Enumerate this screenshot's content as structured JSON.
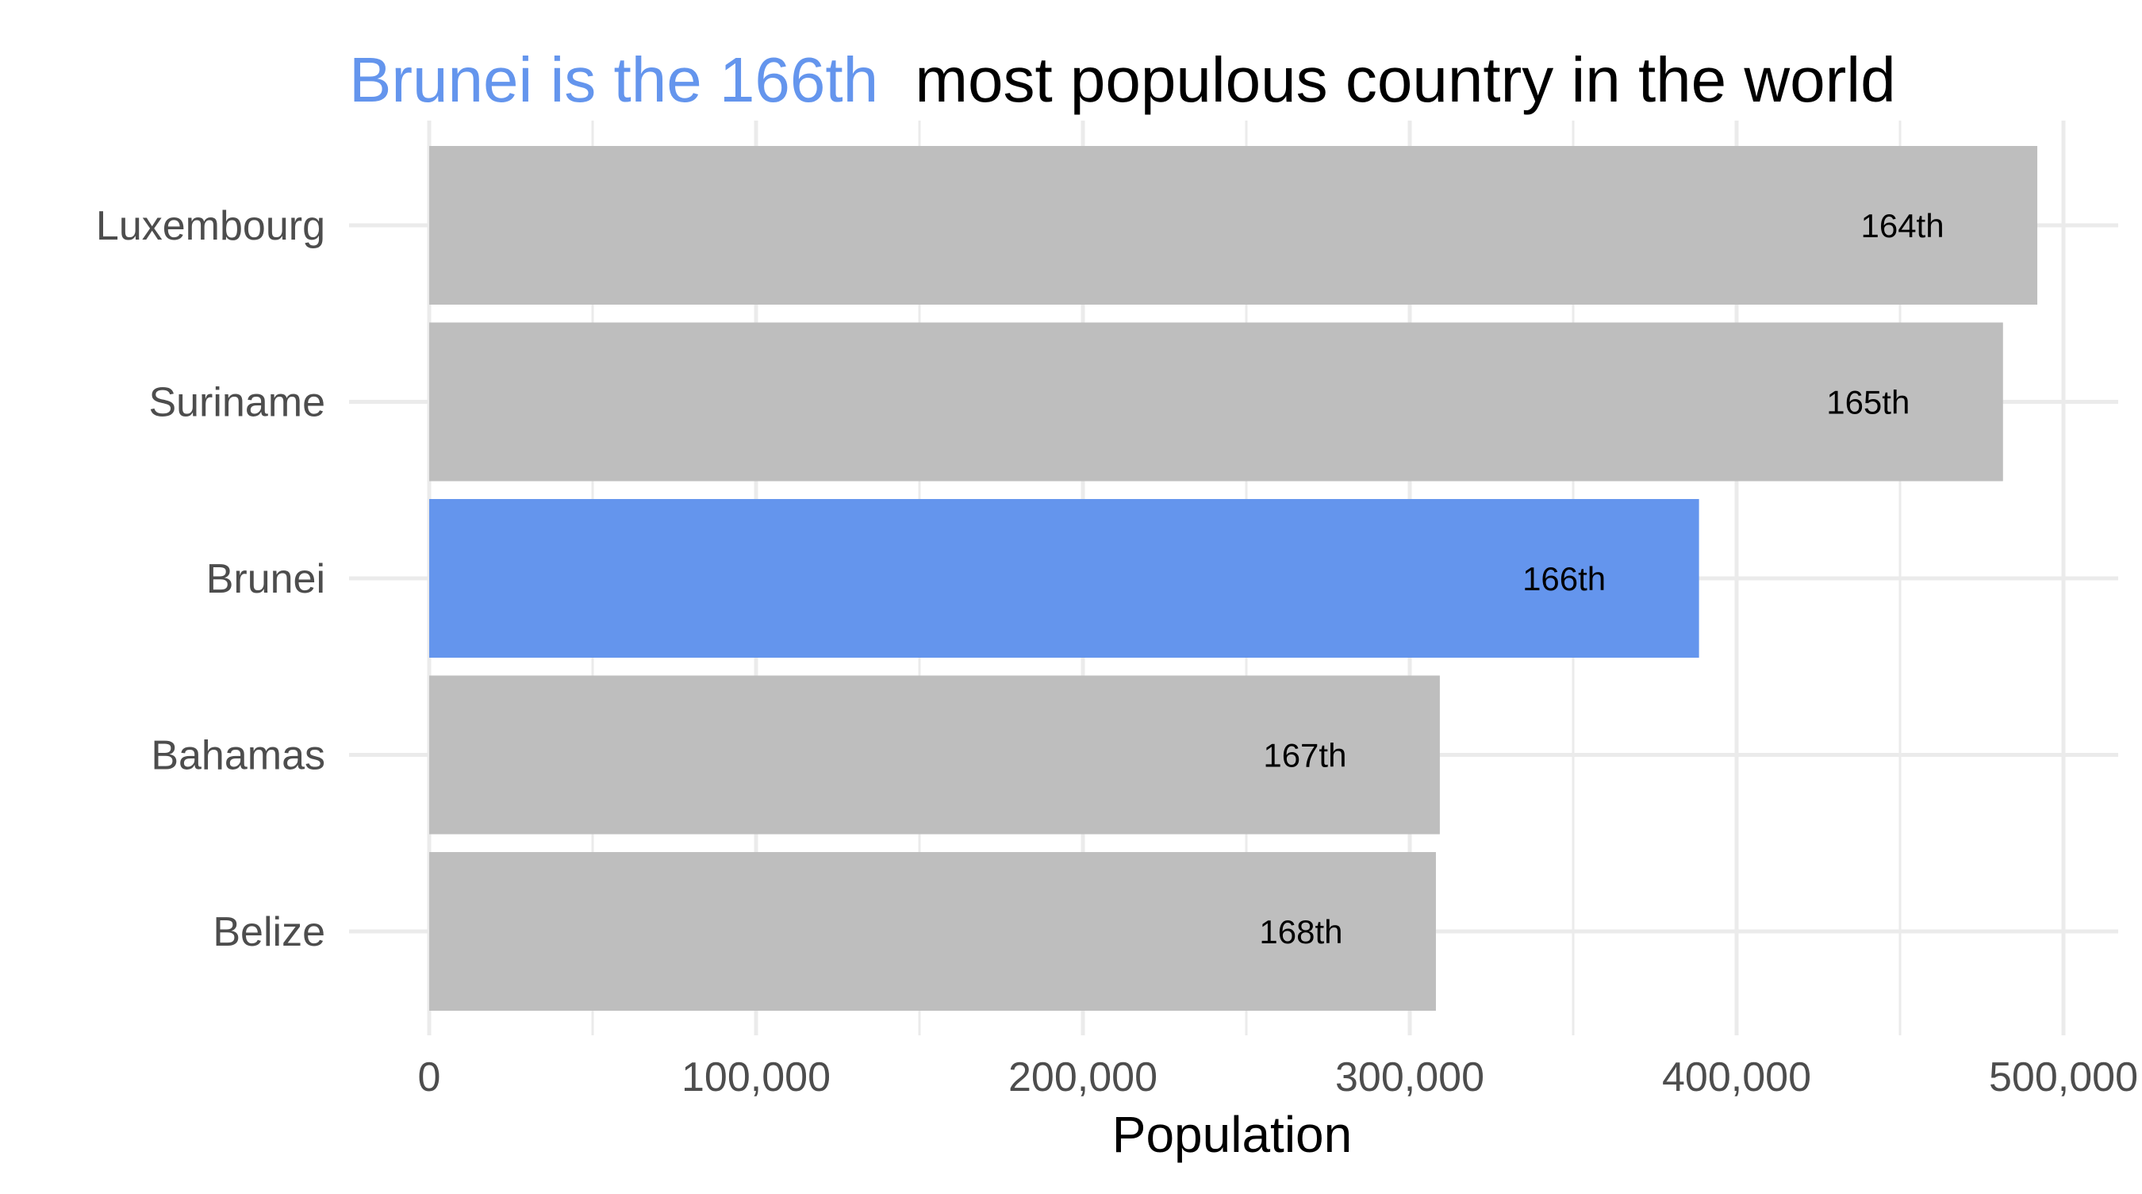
{
  "title": {
    "highlight": "Brunei is the 166th",
    "rest": "most populous country in the world"
  },
  "chart_data": {
    "type": "bar",
    "orientation": "horizontal",
    "categories": [
      "Luxembourg",
      "Suriname",
      "Brunei",
      "Bahamas",
      "Belize"
    ],
    "values": [
      492000,
      481500,
      388500,
      309200,
      308000
    ],
    "labels": [
      "164th",
      "165th",
      "166th",
      "167th",
      "168th"
    ],
    "highlight": "Brunei",
    "xlabel": "Population",
    "ylabel": "",
    "xlim": [
      0,
      510000
    ],
    "xticks": [
      0,
      100000,
      200000,
      300000,
      400000,
      500000
    ],
    "xtick_labels": [
      "0",
      "100,000",
      "200,000",
      "300,000",
      "400,000",
      "500,000"
    ],
    "grid": true,
    "legend": "none"
  },
  "colors": {
    "highlight": "#6495ED",
    "bar": "#BEBEBE",
    "grid": "#EBEBEB",
    "axis_text": "#4D4D4D"
  }
}
